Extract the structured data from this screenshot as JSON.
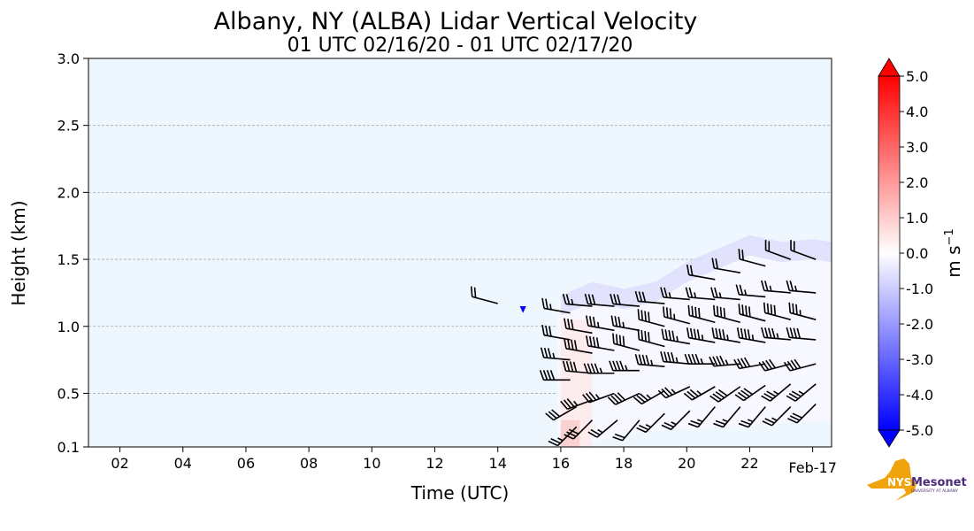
{
  "chart_data": {
    "type": "heatmap",
    "title": "Albany, NY (ALBA) Lidar Vertical Velocity",
    "subtitle": "01 UTC 02/16/20 - 01 UTC 02/17/20",
    "xlabel": "Time (UTC)",
    "ylabel": "Height (km)",
    "xlim": [
      1,
      24.6
    ],
    "ylim": [
      0.1,
      3.0
    ],
    "xticks": [
      {
        "v": 2,
        "label": "02"
      },
      {
        "v": 4,
        "label": "04"
      },
      {
        "v": 6,
        "label": "06"
      },
      {
        "v": 8,
        "label": "08"
      },
      {
        "v": 10,
        "label": "10"
      },
      {
        "v": 12,
        "label": "12"
      },
      {
        "v": 14,
        "label": "14"
      },
      {
        "v": 16,
        "label": "16"
      },
      {
        "v": 18,
        "label": "18"
      },
      {
        "v": 20,
        "label": "20"
      },
      {
        "v": 22,
        "label": "22"
      },
      {
        "v": 24,
        "label": "Feb-17"
      }
    ],
    "yticks": [
      {
        "v": 0.1,
        "label": "0.1"
      },
      {
        "v": 0.5,
        "label": "0.5"
      },
      {
        "v": 1.0,
        "label": "1.0"
      },
      {
        "v": 1.5,
        "label": "1.5"
      },
      {
        "v": 2.0,
        "label": "2.0"
      },
      {
        "v": 2.5,
        "label": "2.5"
      },
      {
        "v": 3.0,
        "label": "3.0"
      }
    ],
    "grid": "horizontal dashed",
    "colorbar": {
      "label": "m s",
      "label_sup": "−1",
      "range": [
        -5,
        5
      ],
      "ticks": [
        "5.0",
        "4.0",
        "3.0",
        "2.0",
        "1.0",
        "0.0",
        "-1.0",
        "-2.0",
        "-3.0",
        "-4.0",
        "-5.0"
      ],
      "colors": {
        "max": "#ff0000",
        "mid": "#ffffff",
        "min": "#0000ff"
      }
    },
    "background_color": "#eef6fe",
    "data_top_km": [
      [
        13.7,
        1.2
      ],
      [
        16,
        1.2
      ],
      [
        17,
        1.3
      ],
      [
        18,
        1.25
      ],
      [
        19,
        1.3
      ],
      [
        20,
        1.45
      ],
      [
        21,
        1.55
      ],
      [
        22,
        1.65
      ],
      [
        23,
        1.6
      ],
      [
        24,
        1.62
      ],
      [
        24.6,
        1.6
      ]
    ],
    "barbs": [
      [
        14.0,
        1.17,
        285,
        20
      ],
      [
        16.3,
        1.1,
        280,
        25
      ],
      [
        16.3,
        0.9,
        280,
        30
      ],
      [
        16.3,
        0.75,
        275,
        35
      ],
      [
        16.3,
        0.6,
        270,
        40
      ],
      [
        16.5,
        0.4,
        240,
        30
      ],
      [
        16.5,
        0.25,
        225,
        25
      ],
      [
        17.0,
        1.15,
        275,
        25
      ],
      [
        17.0,
        0.95,
        280,
        30
      ],
      [
        17.0,
        0.8,
        280,
        40
      ],
      [
        17.0,
        0.65,
        275,
        40
      ],
      [
        17.0,
        0.45,
        250,
        35
      ],
      [
        17.0,
        0.3,
        225,
        30
      ],
      [
        17.7,
        1.15,
        275,
        30
      ],
      [
        17.7,
        0.97,
        280,
        35
      ],
      [
        17.7,
        0.82,
        280,
        40
      ],
      [
        17.7,
        0.65,
        270,
        45
      ],
      [
        17.7,
        0.5,
        250,
        35
      ],
      [
        17.8,
        0.3,
        230,
        25
      ],
      [
        18.5,
        1.15,
        275,
        30
      ],
      [
        18.5,
        0.97,
        280,
        35
      ],
      [
        18.5,
        0.82,
        285,
        40
      ],
      [
        18.5,
        0.67,
        270,
        45
      ],
      [
        18.5,
        0.5,
        245,
        40
      ],
      [
        18.5,
        0.3,
        220,
        20
      ],
      [
        19.3,
        1.17,
        275,
        30
      ],
      [
        19.3,
        1.0,
        285,
        40
      ],
      [
        19.3,
        0.85,
        285,
        40
      ],
      [
        19.3,
        0.7,
        275,
        45
      ],
      [
        19.3,
        0.52,
        240,
        35
      ],
      [
        19.3,
        0.35,
        225,
        25
      ],
      [
        20.1,
        1.2,
        275,
        25
      ],
      [
        20.1,
        1.02,
        285,
        35
      ],
      [
        20.1,
        0.87,
        280,
        45
      ],
      [
        20.1,
        0.72,
        275,
        45
      ],
      [
        20.1,
        0.55,
        245,
        35
      ],
      [
        20.1,
        0.37,
        225,
        25
      ],
      [
        20.9,
        1.35,
        280,
        20
      ],
      [
        20.9,
        1.2,
        275,
        25
      ],
      [
        20.9,
        1.03,
        285,
        40
      ],
      [
        20.9,
        0.88,
        280,
        45
      ],
      [
        20.9,
        0.72,
        270,
        45
      ],
      [
        20.9,
        0.55,
        240,
        35
      ],
      [
        20.9,
        0.4,
        220,
        25
      ],
      [
        21.7,
        1.4,
        280,
        20
      ],
      [
        21.7,
        1.2,
        275,
        25
      ],
      [
        21.7,
        1.03,
        285,
        40
      ],
      [
        21.7,
        0.88,
        280,
        45
      ],
      [
        21.7,
        0.72,
        265,
        45
      ],
      [
        21.7,
        0.55,
        235,
        40
      ],
      [
        21.7,
        0.4,
        220,
        25
      ],
      [
        22.5,
        1.45,
        285,
        20
      ],
      [
        22.5,
        1.22,
        275,
        25
      ],
      [
        22.5,
        1.04,
        285,
        40
      ],
      [
        22.5,
        0.88,
        280,
        45
      ],
      [
        22.5,
        0.72,
        260,
        40
      ],
      [
        22.5,
        0.56,
        235,
        40
      ],
      [
        22.5,
        0.4,
        220,
        25
      ],
      [
        23.3,
        1.5,
        290,
        20
      ],
      [
        23.3,
        1.25,
        275,
        25
      ],
      [
        23.3,
        1.05,
        285,
        40
      ],
      [
        23.3,
        0.9,
        275,
        45
      ],
      [
        23.3,
        0.72,
        255,
        40
      ],
      [
        23.3,
        0.57,
        230,
        35
      ],
      [
        23.3,
        0.4,
        225,
        25
      ],
      [
        24.1,
        1.5,
        290,
        20
      ],
      [
        24.1,
        1.25,
        275,
        25
      ],
      [
        24.1,
        1.05,
        285,
        35
      ],
      [
        24.1,
        0.9,
        275,
        40
      ],
      [
        24.1,
        0.72,
        255,
        40
      ],
      [
        24.1,
        0.57,
        230,
        35
      ],
      [
        24.1,
        0.42,
        225,
        30
      ]
    ]
  },
  "logo": {
    "text_main": "NYS",
    "text_brand": "Mesonet",
    "text_sub": "UNIVERSITY AT ALBANY"
  }
}
